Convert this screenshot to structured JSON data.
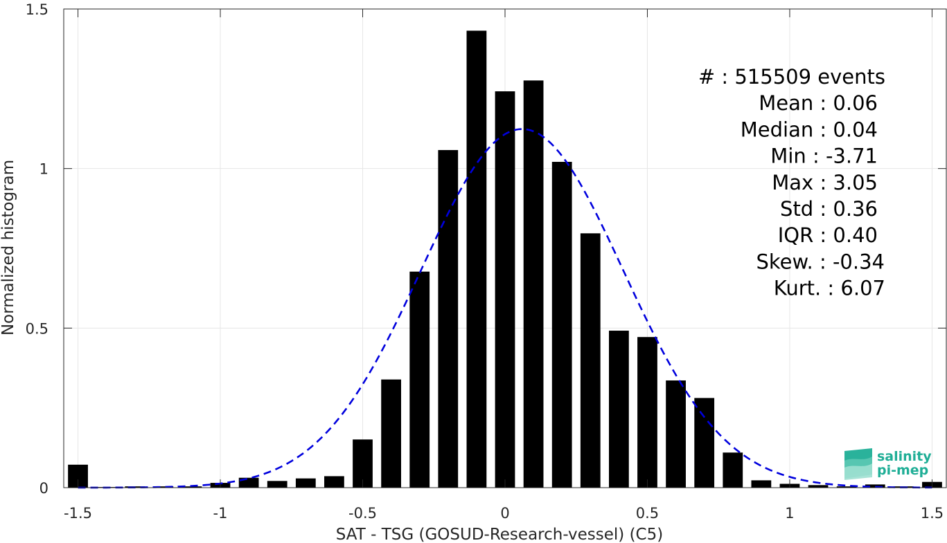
{
  "chart_data": {
    "type": "bar",
    "xlabel": "SAT - TSG (GOSUD-Research-vessel) (C5)",
    "ylabel": "Normalized histogram",
    "xlim": [
      -1.55,
      1.55
    ],
    "ylim": [
      0,
      1.5
    ],
    "xticks": [
      -1.5,
      -1,
      -0.5,
      0,
      0.5,
      1,
      1.5
    ],
    "xtick_labels": [
      "-1.5",
      "-1",
      "-0.5",
      "0",
      "0.5",
      "1",
      "1.5"
    ],
    "yticks": [
      0,
      0.5,
      1,
      1.5
    ],
    "ytick_labels": [
      "0",
      "0.5",
      "1",
      "1.5"
    ],
    "grid": true,
    "bar_color": "#000000",
    "bar_width": 0.07,
    "bars": [
      {
        "x": -1.5,
        "y": 0.072
      },
      {
        "x": -1.4,
        "y": 0.002
      },
      {
        "x": -1.3,
        "y": 0.004
      },
      {
        "x": -1.2,
        "y": 0.004
      },
      {
        "x": -1.1,
        "y": 0.004
      },
      {
        "x": -1.0,
        "y": 0.015
      },
      {
        "x": -0.9,
        "y": 0.031
      },
      {
        "x": -0.8,
        "y": 0.021
      },
      {
        "x": -0.7,
        "y": 0.029
      },
      {
        "x": -0.6,
        "y": 0.036
      },
      {
        "x": -0.5,
        "y": 0.151
      },
      {
        "x": -0.4,
        "y": 0.339
      },
      {
        "x": -0.3,
        "y": 0.677
      },
      {
        "x": -0.2,
        "y": 1.058
      },
      {
        "x": -0.1,
        "y": 1.432
      },
      {
        "x": 0.0,
        "y": 1.242
      },
      {
        "x": 0.1,
        "y": 1.276
      },
      {
        "x": 0.2,
        "y": 1.021
      },
      {
        "x": 0.3,
        "y": 0.797
      },
      {
        "x": 0.4,
        "y": 0.492
      },
      {
        "x": 0.5,
        "y": 0.472
      },
      {
        "x": 0.6,
        "y": 0.336
      },
      {
        "x": 0.7,
        "y": 0.281
      },
      {
        "x": 0.8,
        "y": 0.11
      },
      {
        "x": 0.9,
        "y": 0.023
      },
      {
        "x": 1.0,
        "y": 0.012
      },
      {
        "x": 1.1,
        "y": 0.008
      },
      {
        "x": 1.2,
        "y": 0.004
      },
      {
        "x": 1.3,
        "y": 0.01
      },
      {
        "x": 1.4,
        "y": 0.004
      },
      {
        "x": 1.5,
        "y": 0.018
      }
    ],
    "fit_curve": {
      "type": "gaussian",
      "color": "#0000dd",
      "style": "dashed",
      "mean": 0.06,
      "std": 0.355,
      "x_range": [
        -1.5,
        1.5
      ]
    },
    "stats": [
      "#  : 515509 events",
      "Mean : 0.06",
      "Median : 0.04",
      "Min : -3.71",
      "Max : 3.05",
      "Std : 0.36",
      "IQR : 0.40",
      "Skew. : -0.34",
      "Kurt. : 6.07"
    ]
  },
  "logo": {
    "line1": "salinity",
    "line2": "pi-mep",
    "color": "#1fae96"
  }
}
